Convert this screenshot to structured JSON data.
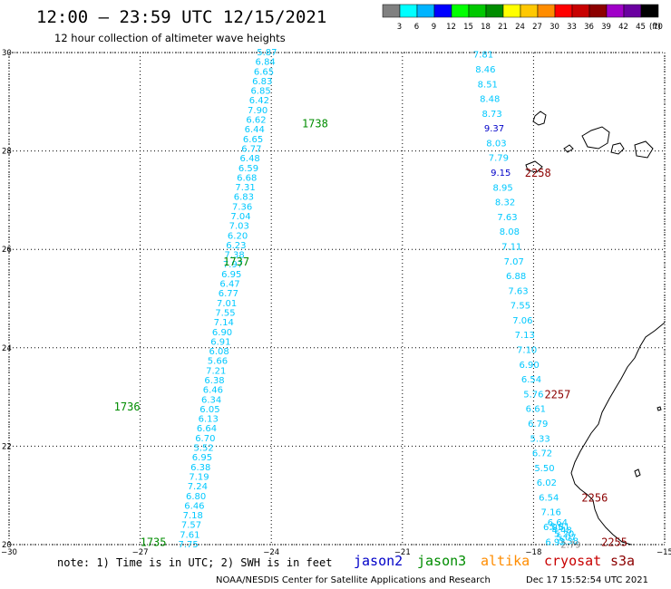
{
  "header": {
    "title": "12:00 – 23:59 UTC 12/15/2021",
    "subtitle": "12 hour collection of altimeter wave heights"
  },
  "colorbar": {
    "labels": [
      "3",
      "6",
      "9",
      "12",
      "15",
      "18",
      "21",
      "24",
      "27",
      "30",
      "33",
      "36",
      "39",
      "42",
      "45",
      "70"
    ],
    "unit": "(ft)",
    "colors": [
      "#808080",
      "#00ffff",
      "#00b4ff",
      "#0000ff",
      "#00ff00",
      "#00c800",
      "#008c00",
      "#ffff00",
      "#ffc800",
      "#ff8c00",
      "#ff0000",
      "#c80000",
      "#8c0000",
      "#a000c8",
      "#6a00a0",
      "#000000"
    ]
  },
  "chart_data": {
    "type": "scatter",
    "xlim": [
      -30,
      -15
    ],
    "ylim": [
      20,
      30
    ],
    "x_ticks": [
      -30,
      -27,
      -24,
      -21,
      -18,
      -15
    ],
    "x_tick_labels": [
      "−30",
      "−27",
      "−24",
      "−21",
      "−18",
      "−15"
    ],
    "y_ticks": [
      20,
      22,
      24,
      26,
      28,
      30
    ],
    "y_tick_labels": [
      "20",
      "22",
      "24",
      "26",
      "28",
      "30"
    ],
    "grid": true,
    "track_west": {
      "start": [
        -25.9,
        20.0
      ],
      "end": [
        -24.1,
        30.0
      ],
      "values": [
        "7.75",
        "7.61",
        "7.57",
        "7.18",
        "6.46",
        "6.80",
        "7.24",
        "7.19",
        "6.38",
        "6.95",
        "5.52",
        "6.70",
        "6.64",
        "6.13",
        "6.05",
        "6.34",
        "6.46",
        "6.38",
        "7.21",
        "5.66",
        "6.08",
        "6.91",
        "6.90",
        "7.14",
        "7.55",
        "7.01",
        "6.77",
        "6.47",
        "6.95",
        "7.97",
        "7.38",
        "6.23",
        "6.20",
        "7.03",
        "7.04",
        "7.36",
        "6.83",
        "7.31",
        "6.68",
        "6.59",
        "6.48",
        "6.77",
        "6.65",
        "6.44",
        "6.62",
        "7.90",
        "6.42",
        "6.85",
        "6.83",
        "6.65",
        "6.84",
        "5.87"
      ],
      "colors": [
        "#00c8ff",
        "#00c8ff",
        "#00c8ff",
        "#00c8ff",
        "#00c8ff",
        "#00c8ff",
        "#00c8ff",
        "#00c8ff",
        "#00c8ff",
        "#00c8ff",
        "#00c8ff",
        "#00c8ff",
        "#00c8ff",
        "#00c8ff",
        "#00c8ff",
        "#00c8ff",
        "#00c8ff",
        "#00c8ff",
        "#00c8ff",
        "#00c8ff",
        "#00c8ff",
        "#00c8ff",
        "#00c8ff",
        "#00c8ff",
        "#00c8ff",
        "#00c8ff",
        "#00c8ff",
        "#00c8ff",
        "#00c8ff",
        "#00c8ff",
        "#00c8ff",
        "#00c8ff",
        "#00c8ff",
        "#00c8ff",
        "#00c8ff",
        "#00c8ff",
        "#00c8ff",
        "#00c8ff",
        "#00c8ff",
        "#00c8ff",
        "#00c8ff",
        "#00c8ff",
        "#00c8ff",
        "#00c8ff",
        "#00c8ff",
        "#00c8ff",
        "#00c8ff",
        "#00c8ff",
        "#00c8ff",
        "#00c8ff",
        "#00c8ff",
        "#00c8ff"
      ],
      "time_labels": [
        {
          "text": "1735",
          "x": -26.7,
          "y": 20.05
        },
        {
          "text": "1736",
          "x": -27.3,
          "y": 22.8
        },
        {
          "text": "1737",
          "x": -24.8,
          "y": 25.75
        },
        {
          "text": "1738",
          "x": -23.0,
          "y": 28.55
        }
      ],
      "satellite_color": "#008c00"
    },
    "track_east": {
      "points": [
        {
          "v": "7.81",
          "x": -19.15,
          "y": 29.95
        },
        {
          "v": "8.46",
          "x": -19.1,
          "y": 29.65
        },
        {
          "v": "8.51",
          "x": -19.05,
          "y": 29.35
        },
        {
          "v": "8.48",
          "x": -19.0,
          "y": 29.05
        },
        {
          "v": "8.73",
          "x": -18.95,
          "y": 28.75
        },
        {
          "v": "9.37",
          "x": -18.9,
          "y": 28.45
        },
        {
          "v": "8.03",
          "x": -18.85,
          "y": 28.15
        },
        {
          "v": "7.79",
          "x": -18.8,
          "y": 27.85
        },
        {
          "v": "9.15",
          "x": -18.75,
          "y": 27.55
        },
        {
          "v": "8.95",
          "x": -18.7,
          "y": 27.25
        },
        {
          "v": "8.32",
          "x": -18.65,
          "y": 26.95
        },
        {
          "v": "7.63",
          "x": -18.6,
          "y": 26.65
        },
        {
          "v": "8.08",
          "x": -18.55,
          "y": 26.35
        },
        {
          "v": "7.11",
          "x": -18.5,
          "y": 26.05
        },
        {
          "v": "7.07",
          "x": -18.45,
          "y": 25.75
        },
        {
          "v": "6.88",
          "x": -18.4,
          "y": 25.45
        },
        {
          "v": "7.63",
          "x": -18.35,
          "y": 25.15
        },
        {
          "v": "7.55",
          "x": -18.3,
          "y": 24.85
        },
        {
          "v": "7.06",
          "x": -18.25,
          "y": 24.55
        },
        {
          "v": "7.13",
          "x": -18.2,
          "y": 24.25
        },
        {
          "v": "7.10",
          "x": -18.15,
          "y": 23.95
        },
        {
          "v": "6.90",
          "x": -18.1,
          "y": 23.65
        },
        {
          "v": "6.54",
          "x": -18.05,
          "y": 23.35
        },
        {
          "v": "5.76",
          "x": -18.0,
          "y": 23.05
        },
        {
          "v": "6.61",
          "x": -17.95,
          "y": 22.75
        },
        {
          "v": "6.79",
          "x": -17.9,
          "y": 22.45
        },
        {
          "v": "5.33",
          "x": -17.85,
          "y": 22.15
        },
        {
          "v": "6.72",
          "x": -17.8,
          "y": 21.85
        },
        {
          "v": "5.50",
          "x": -17.75,
          "y": 21.55
        },
        {
          "v": "6.02",
          "x": -17.7,
          "y": 21.25
        },
        {
          "v": "6.54",
          "x": -17.65,
          "y": 20.95
        },
        {
          "v": "7.16",
          "x": -17.6,
          "y": 20.65
        },
        {
          "v": "6.05",
          "x": -17.55,
          "y": 20.35
        },
        {
          "v": "6.93",
          "x": -17.5,
          "y": 20.05
        },
        {
          "v": "6.64",
          "x": -17.45,
          "y": 19.75
        },
        {
          "v": "5.81",
          "x": -17.4,
          "y": 19.45
        },
        {
          "v": "4.48",
          "x": -17.35,
          "y": 19.15
        },
        {
          "v": "5.20",
          "x": -17.3,
          "y": 18.85
        },
        {
          "v": "5.07",
          "x": -17.25,
          "y": 18.55
        },
        {
          "v": "3.38",
          "x": -17.2,
          "y": 18.25
        },
        {
          "v": "2.79",
          "x": -17.15,
          "y": 17.95
        }
      ],
      "time_labels": [
        {
          "text": "2258",
          "x": -17.9,
          "y": 27.55
        },
        {
          "text": "2257",
          "x": -17.45,
          "y": 23.05
        },
        {
          "text": "2256",
          "x": -16.6,
          "y": 20.95
        },
        {
          "text": "2255",
          "x": -16.15,
          "y": 20.05
        }
      ],
      "satellite_color": "#8c0000"
    }
  },
  "footer": {
    "note": "note:  1) Time is in UTC;  2) SWH is in feet",
    "satellites": [
      {
        "name": "jason2",
        "color": "#0000c8"
      },
      {
        "name": "jason3",
        "color": "#008c00"
      },
      {
        "name": "altika",
        "color": "#ff8c00"
      },
      {
        "name": "cryosat",
        "color": "#c80000"
      },
      {
        "name": "s3a",
        "color": "#8c0000"
      }
    ],
    "credit": "NOAA/NESDIS Center for Satellite Applications and Research",
    "timestamp": "Dec 17 15:52:54 UTC 2021"
  }
}
